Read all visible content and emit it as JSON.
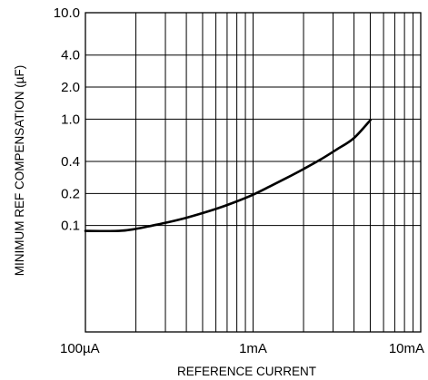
{
  "chart_data": {
    "type": "line",
    "title": "",
    "xlabel": "REFERENCE CURRENT",
    "ylabel": "MINIMUM REF COMPENSATION (µF)",
    "x_scale": "log",
    "y_scale": "log",
    "xlim": [
      0.0001,
      0.01
    ],
    "ylim": [
      0.01,
      10
    ],
    "grid": true,
    "legend": "none",
    "x_ticks": [
      {
        "value": 0.0001,
        "label": "100µA"
      },
      {
        "value": 0.001,
        "label": "1mA"
      },
      {
        "value": 0.01,
        "label": "10mA"
      }
    ],
    "y_ticks": [
      {
        "value": 10,
        "label": "10.0"
      },
      {
        "value": 4,
        "label": "4.0"
      },
      {
        "value": 2,
        "label": "2.0"
      },
      {
        "value": 1,
        "label": "1.0"
      },
      {
        "value": 0.4,
        "label": "0.4"
      },
      {
        "value": 0.2,
        "label": "0.2"
      },
      {
        "value": 0.1,
        "label": "0.1"
      }
    ],
    "series": [
      {
        "color": "#000000",
        "x": [
          0.0001,
          0.0001585,
          0.0002,
          0.0002512,
          0.0003162,
          0.0003981,
          0.0005012,
          0.000631,
          0.0007943,
          0.001,
          0.001259,
          0.001585,
          0.001995,
          0.002512,
          0.003162,
          0.003981,
          0.005012
        ],
        "y": [
          0.089,
          0.089,
          0.093,
          0.1,
          0.108,
          0.118,
          0.131,
          0.147,
          0.168,
          0.195,
          0.233,
          0.28,
          0.339,
          0.415,
          0.52,
          0.66,
          0.98
        ]
      }
    ]
  }
}
